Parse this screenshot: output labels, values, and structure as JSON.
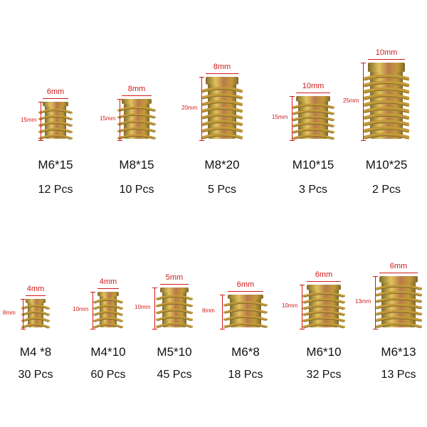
{
  "items": [
    {
      "name": "M6*15",
      "count": "12 Pcs",
      "diameter": "6mm",
      "length": "15mm"
    },
    {
      "name": "M8*15",
      "count": "10 Pcs",
      "diameter": "8mm",
      "length": "15mm"
    },
    {
      "name": "M8*20",
      "count": "5 Pcs",
      "diameter": "8mm",
      "length": "20mm"
    },
    {
      "name": "M10*15",
      "count": "3 Pcs",
      "diameter": "10mm",
      "length": "15mm"
    },
    {
      "name": "M10*25",
      "count": "2 Pcs",
      "diameter": "10mm",
      "length": "25mm"
    },
    {
      "name": "M4 *8",
      "count": "30 Pcs",
      "diameter": "4mm",
      "length": "8mm"
    },
    {
      "name": "M4*10",
      "count": "60 Pcs",
      "diameter": "4mm",
      "length": "10mm"
    },
    {
      "name": "M5*10",
      "count": "45 Pcs",
      "diameter": "5mm",
      "length": "10mm"
    },
    {
      "name": "M6*8",
      "count": "18 Pcs",
      "diameter": "6mm",
      "length": "8mm"
    },
    {
      "name": "M6*10",
      "count": "32 Pcs",
      "diameter": "6mm",
      "length": "10mm"
    },
    {
      "name": "M6*13",
      "count": "13 Pcs",
      "diameter": "6mm",
      "length": "13mm"
    }
  ],
  "colors": {
    "dimension_red": "#d11a1a",
    "brass_light": "#e2c35c",
    "brass_mid": "#c49a3a",
    "brass_dark": "#7f6a2a",
    "copper_tint": "#b77a4a"
  }
}
